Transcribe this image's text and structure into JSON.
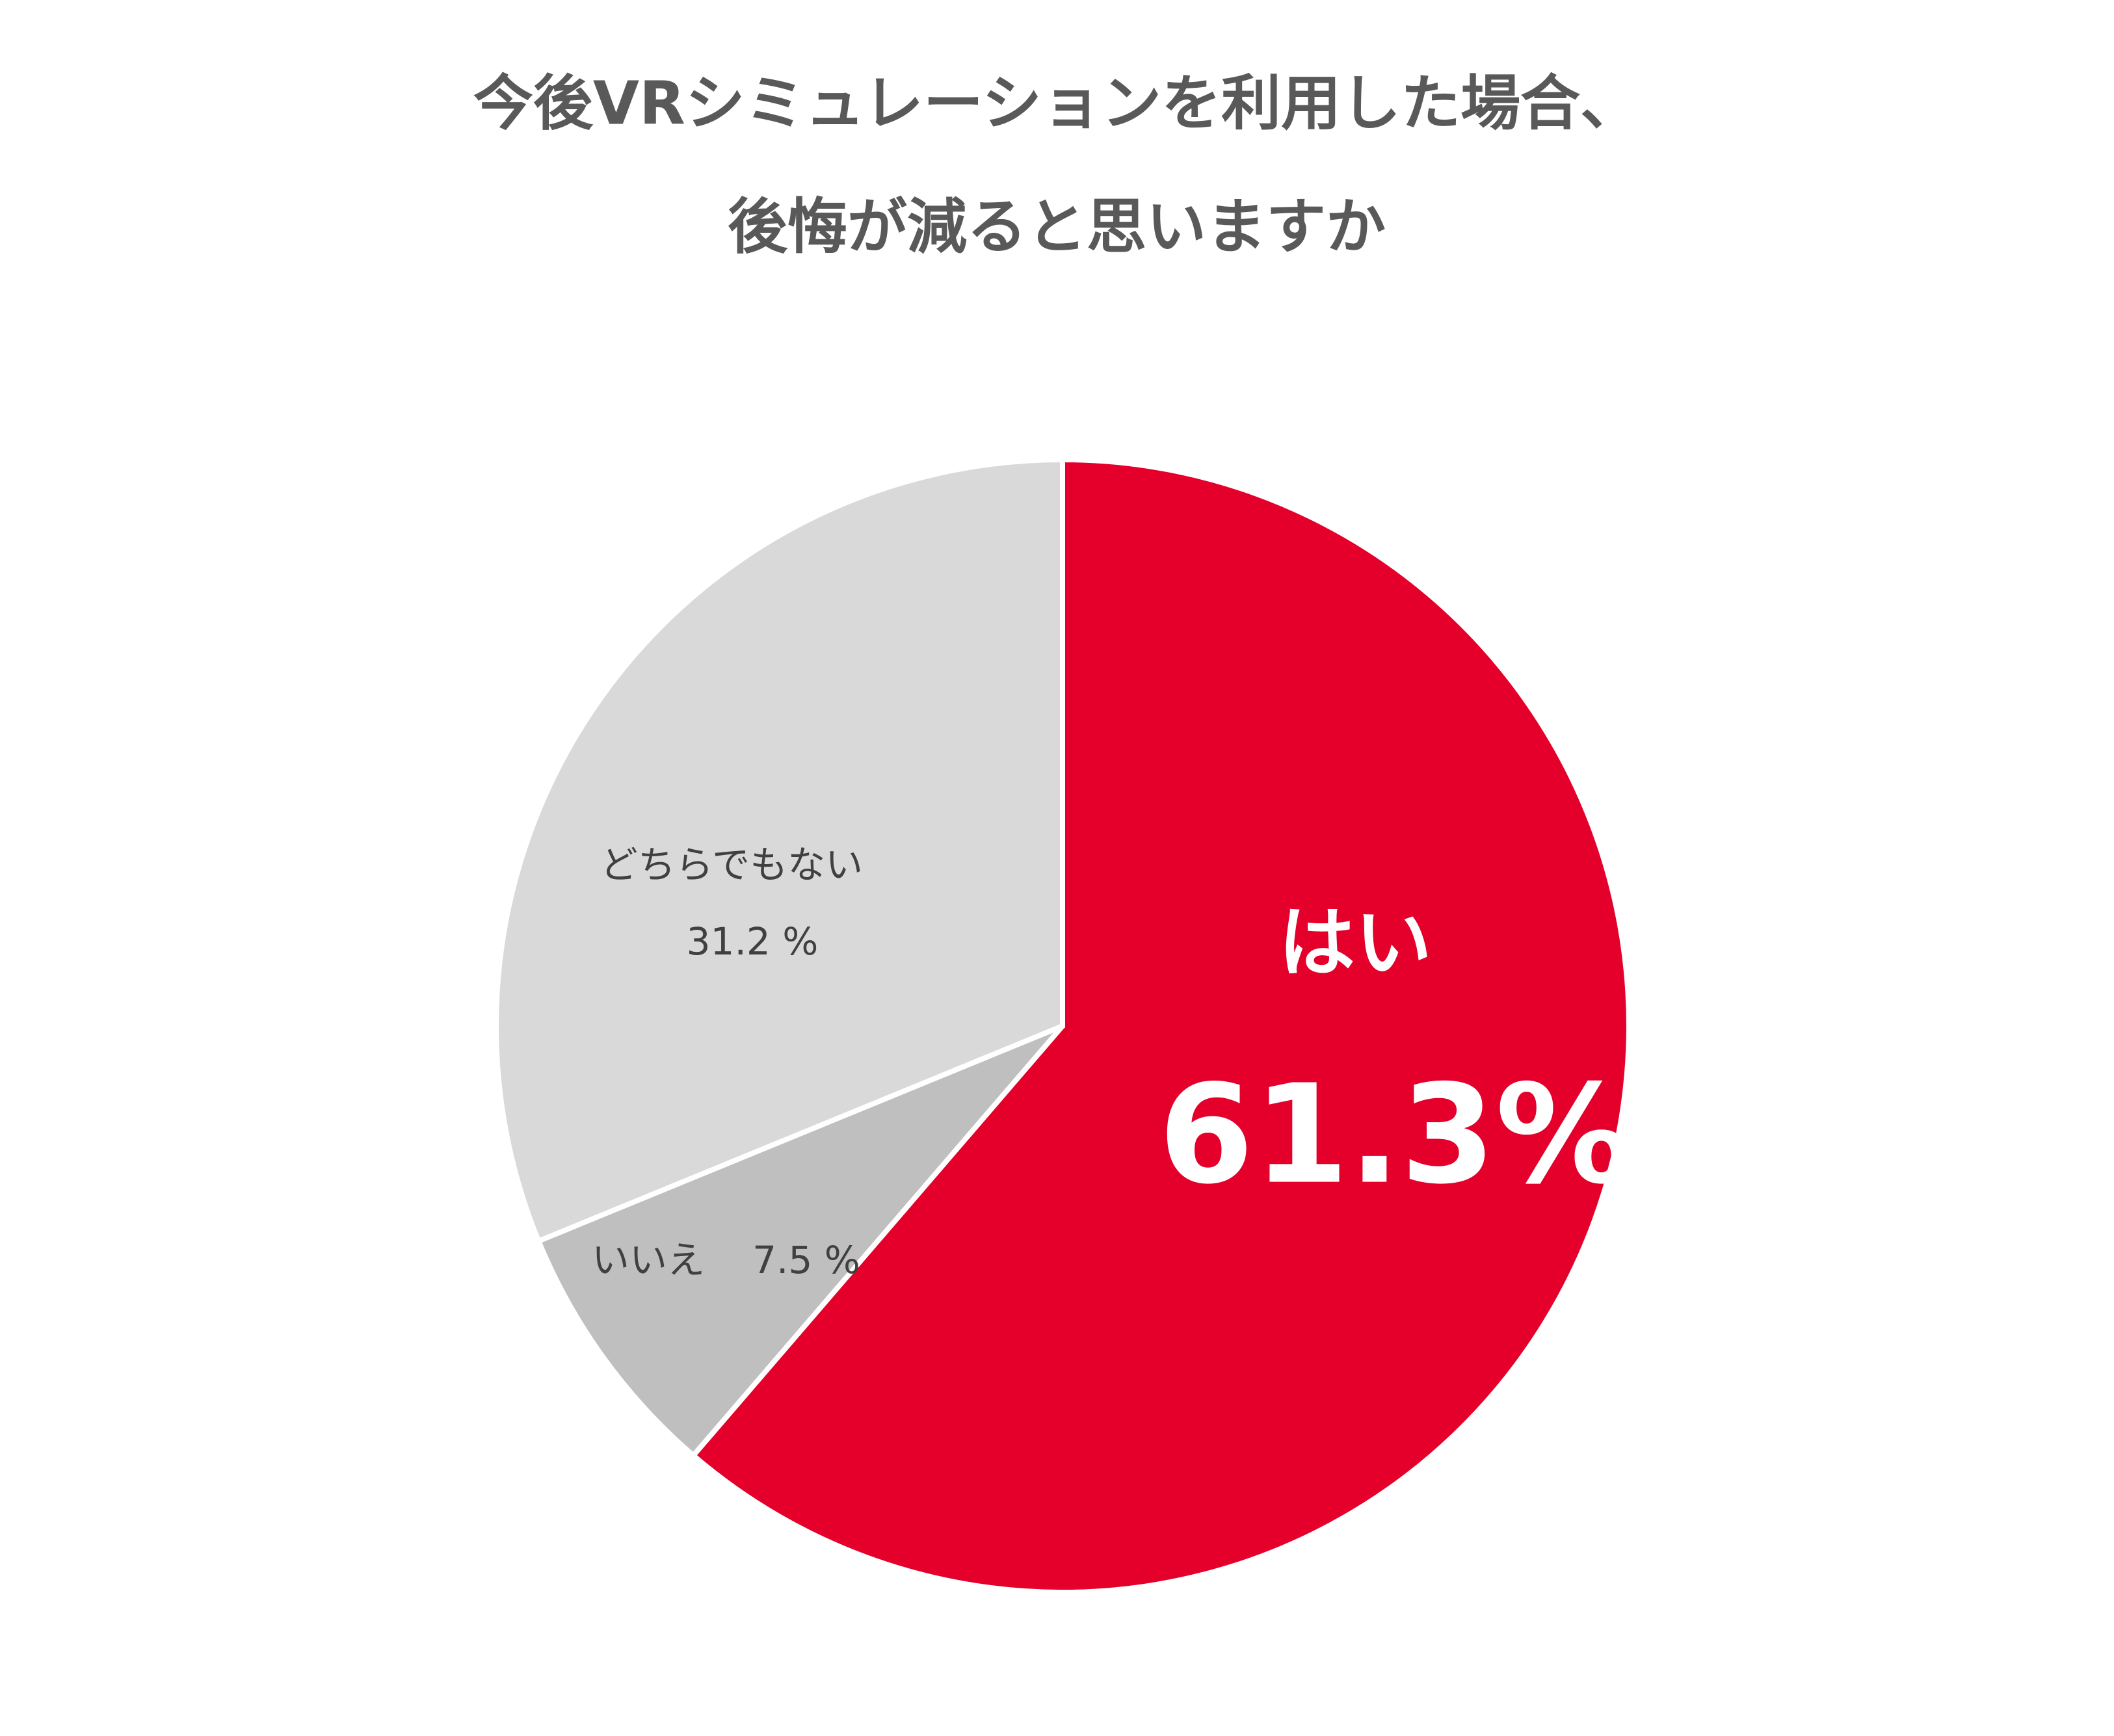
{
  "chart_data": {
    "type": "pie",
    "title": [
      "今後VRシミュレーションを利用した場合、",
      "後悔が減ると思いますか"
    ],
    "categories": [
      "はい",
      "いいえ",
      "どちらでもない"
    ],
    "values": [
      61.3,
      7.5,
      31.2
    ],
    "value_labels": [
      "61.3%",
      "7.5 %",
      "31.2 %"
    ],
    "colors": [
      "#E4002B",
      "#BFBFBF",
      "#D9D9D9"
    ]
  }
}
